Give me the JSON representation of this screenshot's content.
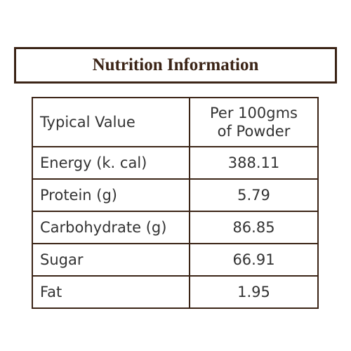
{
  "title": "Nutrition Information",
  "table": {
    "header": [
      "Typical Value",
      [
        "Per 100gms",
        "of Powder"
      ]
    ],
    "rows": [
      [
        "Energy (k. cal)",
        "388.11"
      ],
      [
        "Protein (g)",
        "5.79"
      ],
      [
        "Carbohydrate (g)",
        "86.85"
      ],
      [
        "Sugar",
        "66.91"
      ],
      [
        "Fat",
        "1.95"
      ]
    ]
  }
}
